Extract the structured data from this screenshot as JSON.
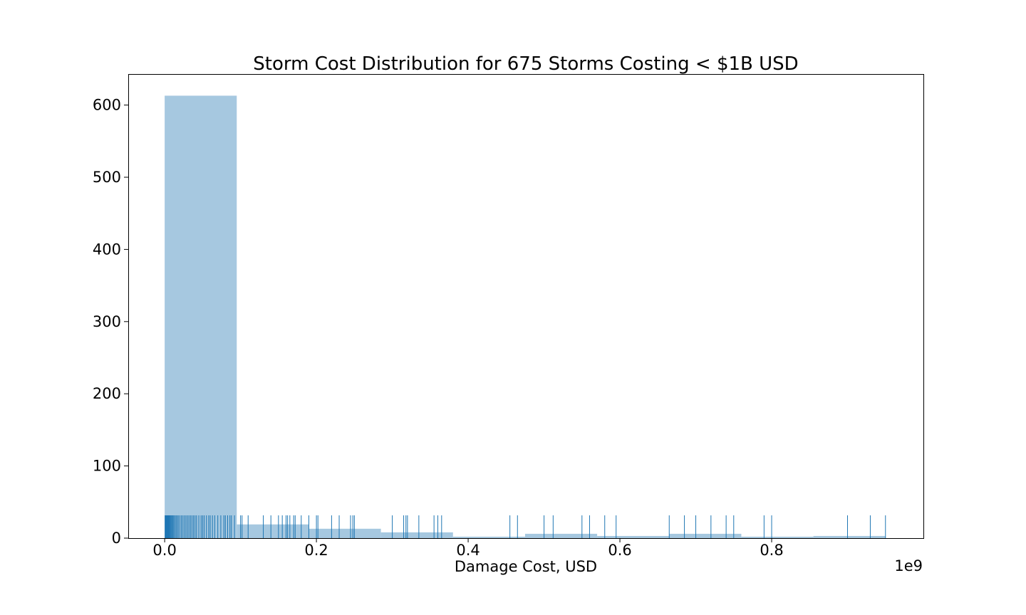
{
  "chart_data": {
    "type": "bar",
    "subtype": "histogram-with-rug",
    "title": "Storm Cost Distribution for 675 Storms Costing < $1B USD",
    "xlabel": "Damage Cost, USD",
    "ylabel": "",
    "x_offset_text": "1e9",
    "xlim": [
      -0.048,
      1.0
    ],
    "ylim": [
      0,
      643
    ],
    "xticks": [
      0.0,
      0.2,
      0.4,
      0.6,
      0.8
    ],
    "xtick_labels": [
      "0.0",
      "0.2",
      "0.4",
      "0.6",
      "0.8"
    ],
    "yticks": [
      0,
      100,
      200,
      300,
      400,
      500,
      600
    ],
    "ytick_labels": [
      "0",
      "100",
      "200",
      "300",
      "400",
      "500",
      "600"
    ],
    "bin_edges": [
      0.0,
      0.095,
      0.19,
      0.285,
      0.38,
      0.475,
      0.57,
      0.665,
      0.76,
      0.855,
      0.95
    ],
    "counts": [
      613,
      19,
      13,
      8,
      2,
      6,
      3,
      6,
      2,
      3
    ],
    "bar_color": "#a6c8e0",
    "rug_color": "#1f77b4",
    "rug_height": 32,
    "rug_values": [
      0.0005,
      0.001,
      0.0015,
      0.002,
      0.0025,
      0.003,
      0.0035,
      0.004,
      0.0045,
      0.005,
      0.0055,
      0.006,
      0.007,
      0.008,
      0.009,
      0.01,
      0.011,
      0.012,
      0.0135,
      0.015,
      0.0165,
      0.018,
      0.02,
      0.022,
      0.024,
      0.026,
      0.028,
      0.03,
      0.032,
      0.034,
      0.036,
      0.038,
      0.04,
      0.042,
      0.045,
      0.048,
      0.05,
      0.052,
      0.055,
      0.058,
      0.06,
      0.063,
      0.066,
      0.07,
      0.074,
      0.078,
      0.08,
      0.083,
      0.086,
      0.088,
      0.092,
      0.1,
      0.102,
      0.11,
      0.13,
      0.14,
      0.15,
      0.155,
      0.16,
      0.162,
      0.165,
      0.17,
      0.172,
      0.18,
      0.19,
      0.2,
      0.202,
      0.22,
      0.23,
      0.245,
      0.248,
      0.25,
      0.3,
      0.315,
      0.318,
      0.32,
      0.335,
      0.355,
      0.36,
      0.365,
      0.455,
      0.465,
      0.5,
      0.512,
      0.55,
      0.56,
      0.58,
      0.595,
      0.665,
      0.685,
      0.7,
      0.72,
      0.74,
      0.75,
      0.79,
      0.8,
      0.9,
      0.93,
      0.95
    ]
  }
}
